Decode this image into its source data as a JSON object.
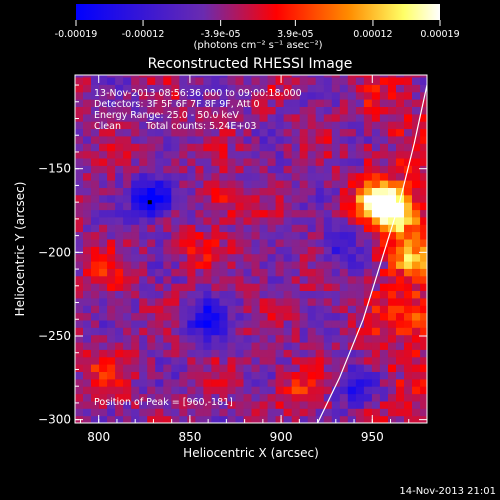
{
  "colorbar": {
    "ticks": [
      "-0.00019",
      "-0.00012",
      "-3.9e-05",
      "3.9e-05",
      "0.00012",
      "0.00019"
    ],
    "tick_values": [
      -0.00019,
      -0.00012,
      -3.9e-05,
      3.9e-05,
      0.00012,
      0.00019
    ],
    "range": [
      -0.00019,
      0.00019
    ],
    "unit_label": "(photons cm⁻² s⁻¹ asec⁻²)",
    "colormap": [
      "#0000ff",
      "#6a2bb0",
      "#ff0000",
      "#ff8c00",
      "#ffff66",
      "#ffffff"
    ]
  },
  "chart_data": {
    "type": "heatmap",
    "title": "Reconstructed RHESSI Image",
    "xlabel": "Heliocentric X (arcsec)",
    "ylabel": "Heliocentric Y (arcsec)",
    "xlim": [
      787,
      980
    ],
    "ylim": [
      -302,
      -94
    ],
    "xticks": [
      800,
      850,
      900,
      950
    ],
    "yticks": [
      -150,
      -200,
      -250,
      -300
    ],
    "annotations": [
      "13-Nov-2013 08:56:36.000 to 09:00:18.000",
      "Detectors: 3F 5F 6F 7F 8F 9F, Att 0",
      "Energy Range: 25.0 - 50.0 keV",
      "Clean",
      "Total counts: 5.24E+03",
      "Position of Peak = [960,-181]"
    ],
    "peak": {
      "x": 960,
      "y": -181
    },
    "limb_curve": [
      [
        920,
        -302
      ],
      [
        932,
        -275
      ],
      [
        945,
        -240
      ],
      [
        955,
        -205
      ],
      [
        965,
        -170
      ],
      [
        973,
        -135
      ],
      [
        980,
        -100
      ]
    ],
    "hot_spots": [
      {
        "x": 962,
        "y": -180,
        "value": 0.00019
      },
      {
        "x": 955,
        "y": -170,
        "value": 0.00016
      },
      {
        "x": 968,
        "y": -205,
        "value": 0.00013
      },
      {
        "x": 970,
        "y": -240,
        "value": 0.0001
      },
      {
        "x": 945,
        "y": -172,
        "value": 9e-05
      },
      {
        "x": 865,
        "y": -172,
        "value": 7e-05
      },
      {
        "x": 800,
        "y": -215,
        "value": 6e-05
      },
      {
        "x": 905,
        "y": -285,
        "value": 7e-05
      },
      {
        "x": 800,
        "y": -272,
        "value": 6e-05
      },
      {
        "x": 852,
        "y": -200,
        "value": 5e-05
      }
    ],
    "cold_spots": [
      {
        "x": 828,
        "y": -170,
        "value": -0.00019
      },
      {
        "x": 857,
        "y": -242,
        "value": -0.00012
      },
      {
        "x": 930,
        "y": -200,
        "value": -8e-05
      },
      {
        "x": 940,
        "y": -283,
        "value": -0.0001
      }
    ]
  },
  "footer": {
    "timestamp": "14-Nov-2013 21:01"
  }
}
